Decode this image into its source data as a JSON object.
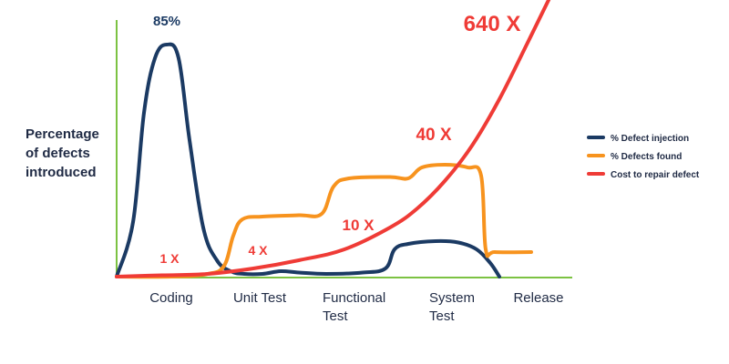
{
  "chart_data": {
    "type": "line",
    "ylabel": [
      "Percentage",
      "of defects",
      "introduced"
    ],
    "xlabels": [
      [
        "Coding"
      ],
      [
        "Unit Test"
      ],
      [
        "Functional",
        "Test"
      ],
      [
        "System",
        "Test"
      ],
      [
        "Release"
      ]
    ],
    "x_range": [
      0,
      5
    ],
    "y_range": [
      0,
      100
    ],
    "grid": false,
    "legend_placement": "right",
    "series": [
      {
        "name": "% Defect injection",
        "color": "#1b3a63",
        "points": [
          [
            0,
            0
          ],
          [
            0.18,
            20
          ],
          [
            0.3,
            60
          ],
          [
            0.42,
            80
          ],
          [
            0.55,
            85
          ],
          [
            0.68,
            80
          ],
          [
            0.8,
            50
          ],
          [
            0.95,
            18
          ],
          [
            1.1,
            6
          ],
          [
            1.25,
            2
          ],
          [
            1.4,
            1
          ],
          [
            1.6,
            1
          ],
          [
            1.8,
            2
          ],
          [
            2.0,
            1.5
          ],
          [
            2.3,
            1
          ],
          [
            2.7,
            1.5
          ],
          [
            2.95,
            3
          ],
          [
            3.05,
            10
          ],
          [
            3.2,
            12
          ],
          [
            3.5,
            13
          ],
          [
            3.75,
            12.5
          ],
          [
            3.95,
            10
          ],
          [
            4.1,
            5
          ],
          [
            4.2,
            0
          ]
        ]
      },
      {
        "name": "% Defects found",
        "color": "#f7931e",
        "points": [
          [
            0,
            0
          ],
          [
            0.6,
            0
          ],
          [
            1.0,
            1
          ],
          [
            1.18,
            4
          ],
          [
            1.28,
            15
          ],
          [
            1.38,
            21
          ],
          [
            1.6,
            22
          ],
          [
            2.0,
            22.5
          ],
          [
            2.25,
            23
          ],
          [
            2.38,
            33
          ],
          [
            2.55,
            36
          ],
          [
            3.0,
            36.5
          ],
          [
            3.2,
            36
          ],
          [
            3.35,
            40
          ],
          [
            3.6,
            41
          ],
          [
            3.85,
            40
          ],
          [
            4.0,
            37
          ],
          [
            4.05,
            10
          ],
          [
            4.15,
            9
          ],
          [
            4.55,
            9
          ]
        ]
      },
      {
        "name": "Cost to repair defect",
        "color": "#ef3b36",
        "points": [
          [
            0,
            0
          ],
          [
            0.5,
            0.5
          ],
          [
            1.0,
            1
          ],
          [
            1.5,
            3
          ],
          [
            2.0,
            6
          ],
          [
            2.5,
            10
          ],
          [
            3.0,
            18
          ],
          [
            3.3,
            25
          ],
          [
            3.6,
            35
          ],
          [
            3.9,
            48
          ],
          [
            4.2,
            65
          ],
          [
            4.5,
            85
          ],
          [
            4.75,
            102
          ]
        ]
      }
    ],
    "annotations": [
      {
        "text": "85%",
        "x": 0.55,
        "y": 92,
        "color": "#1b3a63"
      },
      {
        "text": "1 X",
        "x": 0.58,
        "y": 5,
        "color": "#ef3b36"
      },
      {
        "text": "4 X",
        "x": 1.55,
        "y": 8,
        "color": "#ef3b36"
      },
      {
        "text": "10 X",
        "x": 2.65,
        "y": 17,
        "color": "#ef3b36"
      },
      {
        "text": "40 X",
        "x": 3.48,
        "y": 50,
        "color": "#ef3b36"
      },
      {
        "text": "640 X",
        "x": 4.12,
        "y": 90,
        "color": "#ef3b36"
      }
    ]
  }
}
